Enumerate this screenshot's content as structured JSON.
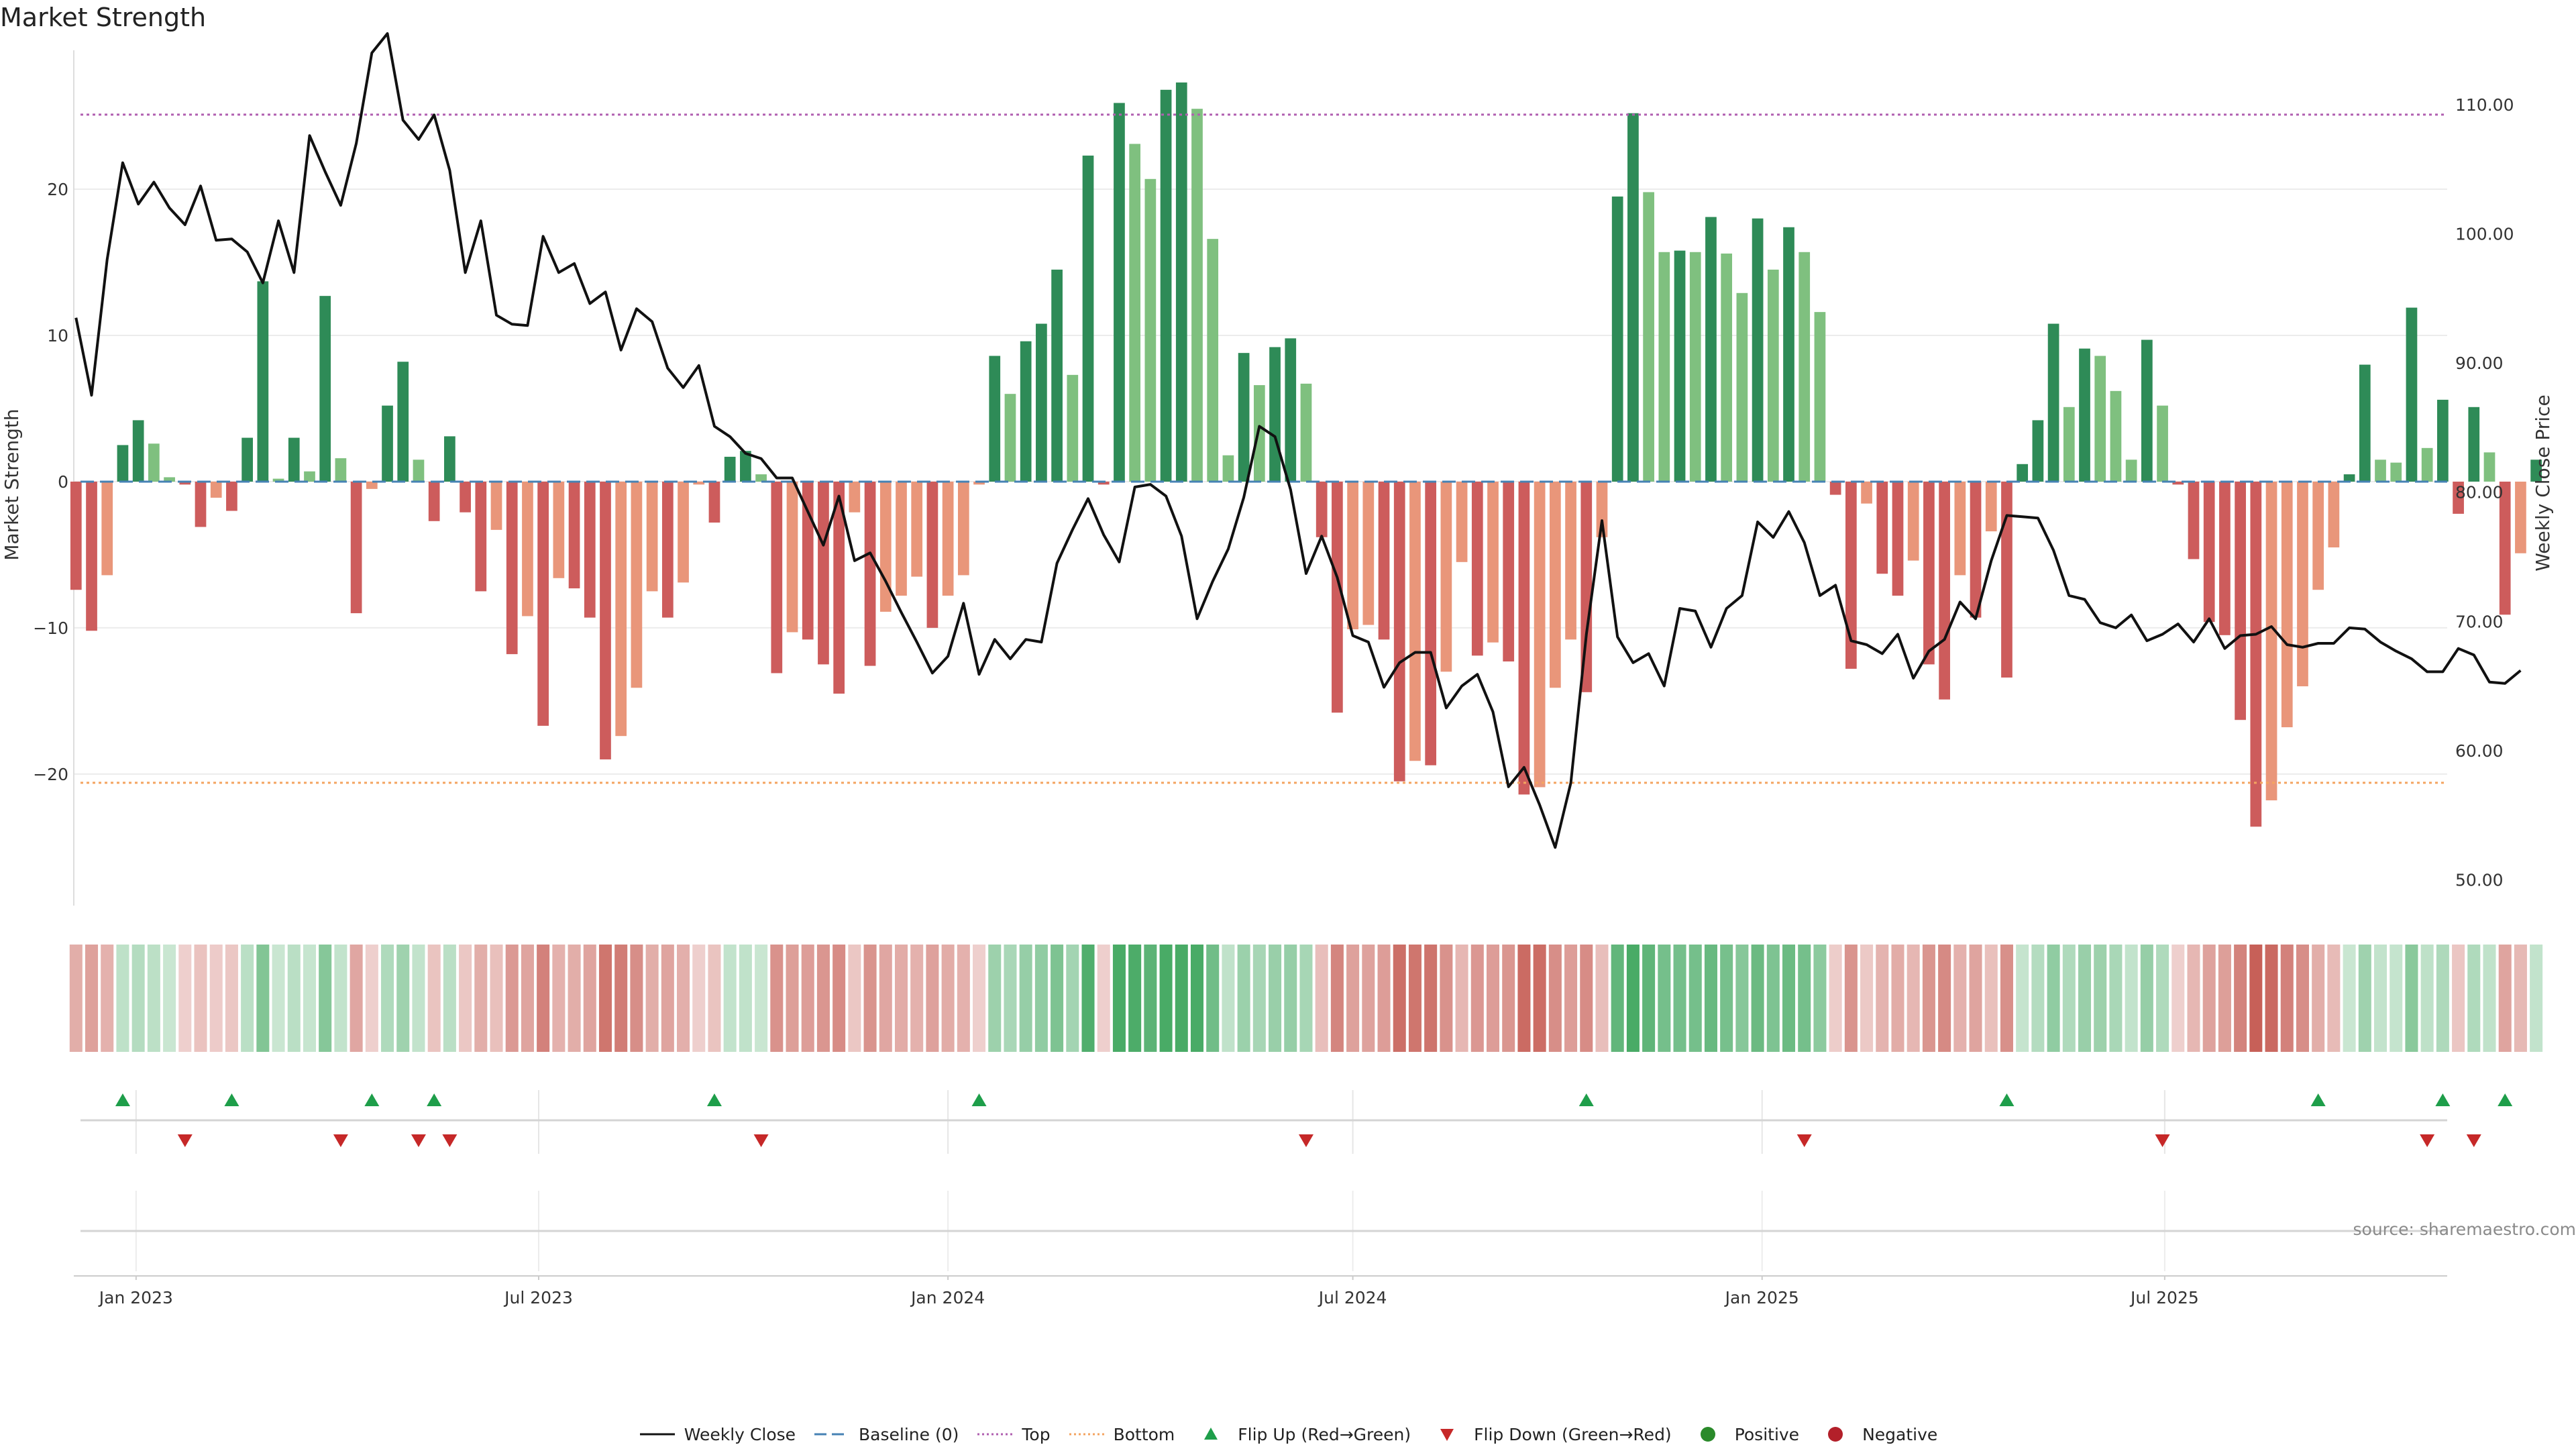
{
  "title": "Market Strength",
  "source": "source: sharemaestro.com",
  "colors": {
    "strong_green": "#2e8b57",
    "light_green": "#7fc07f",
    "strong_red": "#cd5c5c",
    "light_red": "#e9967a",
    "baseline": "#4682b4",
    "top": "#b05fb0",
    "bottom": "#f4a460",
    "flip_up": "#1e9e4a",
    "flip_down": "#c62828",
    "price_line": "#111111",
    "positive": "#2a8a2a",
    "negative": "#b3202a"
  },
  "chart_data": {
    "type": "bar",
    "title": "Market Strength",
    "ylabel": "Market Strength",
    "y2label": "Weekly Close Price",
    "ylim": [
      -29,
      29.5
    ],
    "y2lim": [
      48.0,
      114.2
    ],
    "xlim": [
      "2022-12-04",
      "2025-11-05"
    ],
    "yticks": [
      -20,
      -10,
      0,
      10,
      20
    ],
    "yticklabels": [
      "−20",
      "−10",
      "0",
      "10",
      "20"
    ],
    "y2ticks": [
      50,
      60,
      70,
      80,
      90,
      100,
      110
    ],
    "y2ticklabels": [
      "50.00",
      "60.00",
      "70.00",
      "80.00",
      "90.00",
      "100.00",
      "110.00"
    ],
    "xticks": [
      "2023-01-01",
      "2023-07-01",
      "2024-01-01",
      "2024-07-01",
      "2025-01-01",
      "2025-07-01"
    ],
    "xticklabels": [
      "Jan 2023",
      "Jul 2023",
      "Jan 2024",
      "Jul 2024",
      "Jan 2025",
      "Jul 2025"
    ],
    "top_threshold": 25.1,
    "bottom_threshold": -20.6,
    "start_date": "2022-12-05",
    "interval_days": 7,
    "series": [
      {
        "name": "Market Strength",
        "values": [
          -7.4,
          -10.2,
          -6.4,
          2.5,
          4.2,
          2.6,
          0.3,
          -0.2,
          -3.1,
          -1.1,
          -2.0,
          3.0,
          13.7,
          0.2,
          3.0,
          0.7,
          12.7,
          1.6,
          -9.0,
          -0.5,
          5.2,
          8.2,
          1.5,
          -2.7,
          3.1,
          -2.1,
          -7.5,
          -3.3,
          -11.8,
          -9.2,
          -16.7,
          -6.6,
          -7.3,
          -9.3,
          -19.0,
          -17.4,
          -14.1,
          -7.5,
          -9.3,
          -6.9,
          -0.2,
          -2.8,
          1.7,
          2.1,
          0.5,
          -13.1,
          -10.3,
          -10.8,
          -12.5,
          -14.5,
          -2.1,
          -12.6,
          -8.9,
          -7.8,
          -6.5,
          -10.0,
          -7.8,
          -6.4,
          -0.2,
          8.6,
          6.0,
          9.6,
          10.8,
          14.5,
          7.3,
          22.3,
          -0.2,
          25.9,
          23.1,
          20.7,
          26.8,
          27.3,
          25.5,
          16.6,
          1.8,
          8.8,
          6.6,
          9.2,
          9.8,
          6.7,
          -3.8,
          -15.8,
          -10.1,
          -9.8,
          -10.8,
          -20.5,
          -19.1,
          -19.4,
          -13.0,
          -5.5,
          -11.9,
          -11.0,
          -12.3,
          -21.4,
          -20.9,
          -14.1,
          -10.8,
          -14.4,
          -3.8,
          19.5,
          25.2,
          19.8,
          15.7,
          15.8,
          15.7,
          18.1,
          15.6,
          12.9,
          18.0,
          14.5,
          17.4,
          15.7,
          11.6,
          -0.9,
          -12.8,
          -1.5,
          -6.3,
          -7.8,
          -5.4,
          -12.5,
          -14.9,
          -6.4,
          -9.3,
          -3.4,
          -13.4,
          1.2,
          4.2,
          10.8,
          5.1,
          9.1,
          8.6,
          6.2,
          1.5,
          9.7,
          5.2,
          -0.2,
          -5.3,
          -9.6,
          -10.5,
          -16.3,
          -23.6,
          -21.8,
          -16.8,
          -14.0,
          -7.4,
          -4.5,
          0.5,
          8.0,
          1.5,
          1.3,
          11.9,
          2.3,
          5.6,
          -2.2,
          5.1,
          2.0,
          -9.1,
          -4.9,
          1.5
        ]
      },
      {
        "name": "Weekly Close",
        "values": [
          93.5,
          87.5,
          98.0,
          105.5,
          102.3,
          104.0,
          102.0,
          100.7,
          103.7,
          99.5,
          99.6,
          98.6,
          96.2,
          101.0,
          97.0,
          107.6,
          104.8,
          102.2,
          107.0,
          114.0,
          115.5,
          108.8,
          107.3,
          109.2,
          104.9,
          97.0,
          101.0,
          93.7,
          93.0,
          92.9,
          99.8,
          97.0,
          97.7,
          94.6,
          95.5,
          91.0,
          94.2,
          93.2,
          89.6,
          88.1,
          89.8,
          85.1,
          84.3,
          83.0,
          82.6,
          81.1,
          81.1,
          78.5,
          75.9,
          79.7,
          74.7,
          75.3,
          73.1,
          70.7,
          68.4,
          66.0,
          67.3,
          71.4,
          65.9,
          68.6,
          67.1,
          68.6,
          68.4,
          74.5,
          77.1,
          79.5,
          76.7,
          74.6,
          80.4,
          80.6,
          79.7,
          76.6,
          70.2,
          73.1,
          75.6,
          79.6,
          85.1,
          84.3,
          80.2,
          73.7,
          76.6,
          73.4,
          68.9,
          68.4,
          64.9,
          66.8,
          67.6,
          67.6,
          63.3,
          65.0,
          65.9,
          63.0,
          57.2,
          58.7,
          55.8,
          52.5,
          57.5,
          69.0,
          77.8,
          68.8,
          66.8,
          67.5,
          65.0,
          71.0,
          70.8,
          68.0,
          71.0,
          72.0,
          77.7,
          76.5,
          78.5,
          76.1,
          72.0,
          72.8,
          68.5,
          68.2,
          67.5,
          69.0,
          65.6,
          67.7,
          68.6,
          71.5,
          70.2,
          74.7,
          78.2,
          78.1,
          78.0,
          75.5,
          72.0,
          71.7,
          69.9,
          69.5,
          70.5,
          68.5,
          69.0,
          69.8,
          68.4,
          70.2,
          67.9,
          68.9,
          69.0,
          69.6,
          68.2,
          68.0,
          68.3,
          68.3,
          69.5,
          69.4,
          68.4,
          67.7,
          67.1,
          66.1,
          66.1,
          67.9,
          67.4,
          65.3,
          65.2,
          66.2
        ]
      }
    ],
    "flip_up_weeks": [
      3,
      10,
      19,
      23,
      41,
      58,
      97,
      124,
      144,
      152,
      156
    ],
    "flip_down_weeks": [
      7,
      17,
      22,
      24,
      44,
      79,
      111,
      134,
      151,
      154
    ]
  },
  "legend": {
    "weekly_close": "Weekly Close",
    "baseline": "Baseline (0)",
    "top": "Top",
    "bottom": "Bottom",
    "flip_up": "Flip Up (Red→Green)",
    "flip_down": "Flip Down (Green→Red)",
    "positive": "Positive",
    "negative": "Negative"
  }
}
